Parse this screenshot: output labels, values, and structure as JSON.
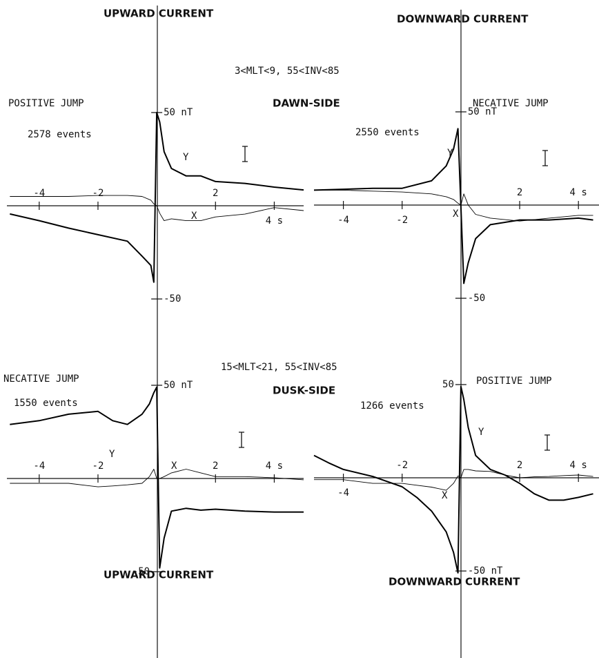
{
  "labels": {
    "top_left": "UPWARD CURRENT",
    "top_right": "DOWNWARD CURRENT",
    "dawn_condition": "3<MLT<9, 55<INV<85",
    "dawn_side": "DAWN-SIDE",
    "dusk_condition": "15<MLT<21, 55<INV<85",
    "dusk_side": "DUSK-SIDE",
    "bottom_left": "UPWARD CURRENT",
    "bottom_right": "DOWNWARD CURRENT"
  },
  "chart_data": [
    {
      "type": "line",
      "title": "POSITIVE JUMP",
      "subtitle": "2578 events",
      "x": [
        -5,
        -4,
        -3,
        -2,
        -1,
        -0.5,
        -0.2,
        -0.1,
        0,
        0.1,
        0.25,
        0.5,
        1,
        1.5,
        2,
        3,
        4,
        5
      ],
      "series": [
        {
          "name": "Y",
          "color": "#000000",
          "values": [
            -4.4,
            -8,
            -12,
            -15.5,
            -19,
            -27,
            -32,
            -41,
            50,
            45,
            29,
            20,
            16,
            16,
            13,
            12,
            10,
            8.5
          ]
        },
        {
          "name": "X",
          "color": "#000000",
          "values": [
            5,
            5,
            5,
            5.5,
            5.5,
            5,
            3,
            1,
            0,
            -4,
            -8,
            -7,
            -8,
            -8,
            -6,
            -4.5,
            -1,
            -2.6
          ]
        }
      ],
      "xlim": [
        -5.1,
        5
      ],
      "ylim": [
        -60,
        60
      ],
      "xticks": [
        -4,
        -2,
        2,
        {
          "value": 4,
          "label": "4 s"
        }
      ],
      "yticks": [
        {
          "value": 50,
          "label": "50 nT"
        },
        -50
      ]
    },
    {
      "type": "line",
      "title": "NECATIVE JUMP",
      "subtitle": "2550 events",
      "x": [
        -5,
        -4,
        -3,
        -2,
        -1,
        -0.5,
        -0.25,
        -0.1,
        0,
        0.1,
        0.25,
        0.5,
        1,
        2,
        3,
        4,
        4.5
      ],
      "series": [
        {
          "name": "Y",
          "color": "#000000",
          "values": [
            8,
            8.5,
            9,
            9,
            13,
            21,
            30,
            41,
            -1,
            -42,
            -31,
            -18,
            -10.5,
            -8,
            -8,
            -7,
            -8
          ]
        },
        {
          "name": "X",
          "color": "#000000",
          "values": [
            8,
            8,
            7.5,
            7,
            6,
            4.5,
            3,
            1,
            0,
            6,
            0,
            -5,
            -7,
            -8.6,
            -7,
            -5.5,
            -5.5
          ]
        }
      ],
      "xlim": [
        -5,
        4.7
      ],
      "ylim": [
        -60,
        60
      ],
      "xticks": [
        -4,
        -2,
        2,
        {
          "value": 4,
          "label": "4 s"
        }
      ],
      "yticks": [
        {
          "value": 50,
          "label": "50 nT"
        },
        -50
      ]
    },
    {
      "type": "line",
      "title": "NECATIVE JUMP",
      "subtitle": "1550 events",
      "x": [
        -5,
        -4,
        -3,
        -2,
        -1.5,
        -1,
        -0.5,
        -0.25,
        -0.1,
        0,
        0.1,
        0.25,
        0.5,
        1,
        1.5,
        2,
        3,
        4,
        5
      ],
      "series": [
        {
          "name": "Y",
          "color": "#000000",
          "values": [
            29,
            31,
            34.5,
            36,
            31,
            29,
            34.5,
            40,
            46,
            49,
            -48,
            -32,
            -17.5,
            -16,
            -17,
            -16.5,
            -17.5,
            -18,
            -18
          ]
        },
        {
          "name": "X",
          "color": "#000000",
          "values": [
            -2.6,
            -2.6,
            -2.6,
            -4.5,
            -4,
            -3.4,
            -2.6,
            1,
            5,
            0,
            0,
            1,
            3,
            5,
            3,
            1,
            1,
            0.4,
            -0.7
          ]
        }
      ],
      "xlim": [
        -5.1,
        5
      ],
      "ylim": [
        -60,
        60
      ],
      "xticks": [
        -4,
        -2,
        2,
        {
          "value": 4,
          "label": "4 s"
        }
      ],
      "yticks": [
        {
          "value": 50,
          "label": "50 nT"
        },
        -50
      ]
    },
    {
      "type": "line",
      "title": "POSITIVE JUMP",
      "subtitle": "1266 events",
      "x": [
        -5,
        -4.5,
        -4,
        -3,
        -2,
        -1.5,
        -1,
        -0.5,
        -0.25,
        -0.1,
        0,
        0.1,
        0.25,
        0.5,
        1,
        1.5,
        2,
        2.5,
        3,
        3.5,
        4,
        4.5
      ],
      "series": [
        {
          "name": "Y",
          "color": "#000000",
          "values": [
            12,
            8,
            4.5,
            0.7,
            -4.8,
            -10.5,
            -17.8,
            -29,
            -40,
            -51,
            49,
            42,
            27,
            12,
            4.5,
            1.5,
            -3,
            -8.6,
            -12,
            -12,
            -10.5,
            -8.6
          ]
        },
        {
          "name": "X",
          "color": "#000000",
          "values": [
            -1,
            -1,
            -1,
            -3,
            -3,
            -4,
            -5,
            -6.7,
            -3,
            1,
            0,
            4.5,
            4.5,
            3.7,
            3.4,
            1.5,
            0,
            0.5,
            0.7,
            1.2,
            1.5,
            0.7
          ]
        }
      ],
      "xlim": [
        -5,
        4.7
      ],
      "ylim": [
        -60,
        60
      ],
      "xticks": [
        -4,
        -2,
        2,
        {
          "value": 4,
          "label": "4 s"
        }
      ],
      "yticks": [
        50,
        {
          "value": -50,
          "label": "-50 nT"
        }
      ]
    }
  ]
}
